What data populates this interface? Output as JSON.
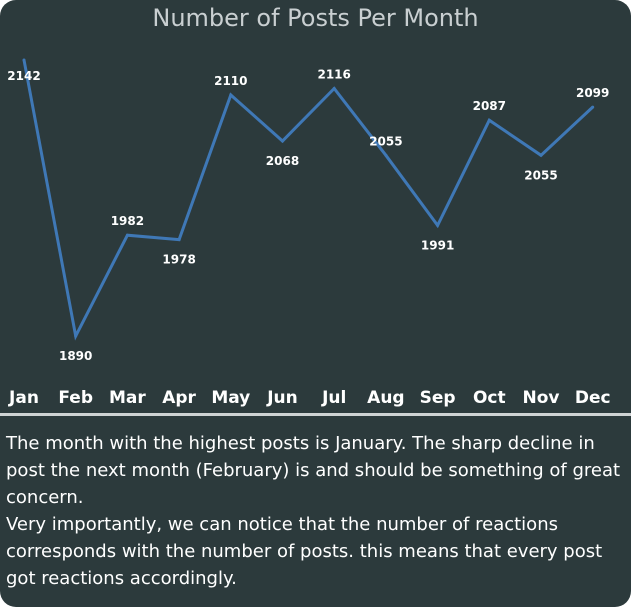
{
  "chart_data": {
    "type": "line",
    "title": "Number of Posts Per Month",
    "categories": [
      "Jan",
      "Feb",
      "Mar",
      "Apr",
      "May",
      "Jun",
      "Jul",
      "Aug",
      "Sep",
      "Oct",
      "Nov",
      "Dec"
    ],
    "series": [
      {
        "values": [
          2142,
          1890,
          1982,
          1978,
          2110,
          2068,
          2116,
          2055,
          1991,
          2087,
          2055,
          2099
        ],
        "color": "#3f78b6"
      }
    ],
    "data_labels": true,
    "grid": false,
    "y_axis_visible": false
  },
  "commentary": {
    "paragraph_1": "The month with the highest posts is January. The sharp decline in post the next month (February) is and should be something of great concern.",
    "paragraph_2": "Very importantly, we can notice that the number of reactions corresponds with the number of posts. this means that every post got reactions accordingly."
  },
  "colors": {
    "background": "#2c3a3c",
    "line": "#3f78b6",
    "text": "#ffffff",
    "title": "#c9cfd1"
  }
}
